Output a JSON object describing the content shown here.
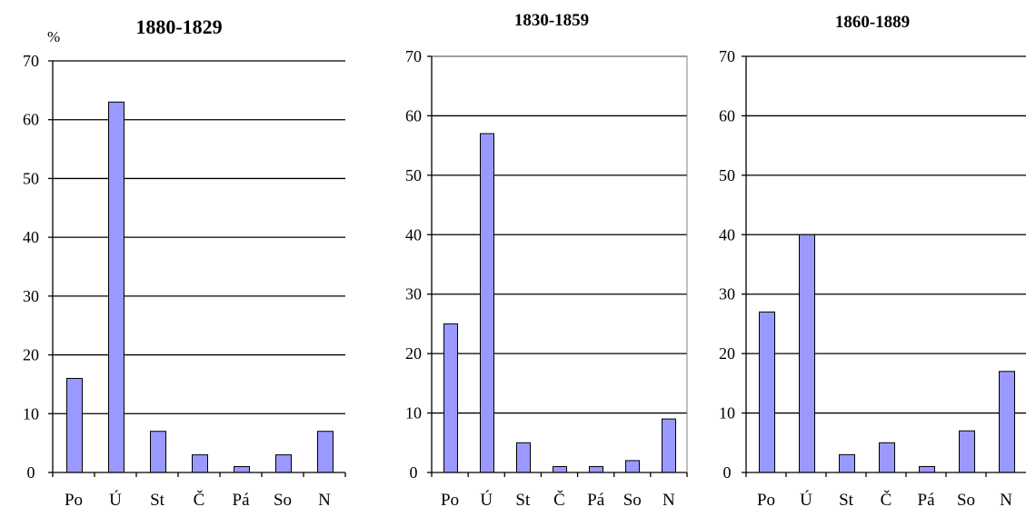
{
  "unit_label": "%",
  "chart_data": [
    {
      "type": "bar",
      "title": "1880-1829",
      "ylabel": "%",
      "ylim": [
        0,
        70
      ],
      "yticks": [
        0,
        10,
        20,
        30,
        40,
        50,
        60,
        70
      ],
      "categories": [
        "Po",
        "Ú",
        "St",
        "Č",
        "Pá",
        "So",
        "N"
      ],
      "values": [
        16,
        63,
        7,
        3,
        1,
        3,
        7
      ],
      "bar_color": "#9999ff",
      "grid": true,
      "legend": "none"
    },
    {
      "type": "bar",
      "title": "1830-1859",
      "ylim": [
        0,
        70
      ],
      "yticks": [
        0,
        10,
        20,
        30,
        40,
        50,
        60,
        70
      ],
      "categories": [
        "Po",
        "Ú",
        "St",
        "Č",
        "Pá",
        "So",
        "N"
      ],
      "values": [
        25,
        57,
        5,
        1,
        1,
        2,
        9
      ],
      "bar_color": "#9999ff",
      "grid": true,
      "legend": "none"
    },
    {
      "type": "bar",
      "title": "1860-1889",
      "ylim": [
        0,
        70
      ],
      "yticks": [
        0,
        10,
        20,
        30,
        40,
        50,
        60,
        70
      ],
      "categories": [
        "Po",
        "Ú",
        "St",
        "Č",
        "Pá",
        "So",
        "N"
      ],
      "values": [
        27,
        40,
        3,
        5,
        1,
        7,
        17
      ],
      "bar_color": "#9999ff",
      "grid": true,
      "legend": "none"
    }
  ]
}
